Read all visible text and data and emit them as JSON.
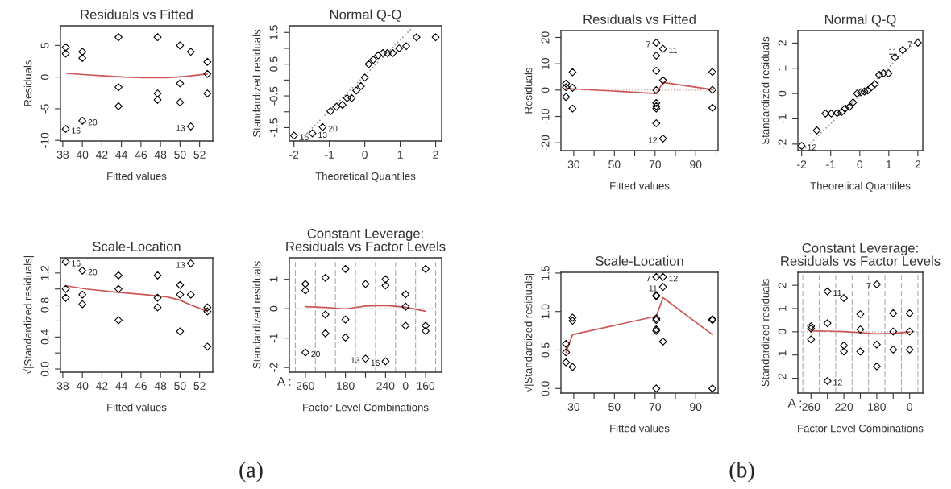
{
  "chart_data": [
    {
      "type": "scatter",
      "title": "Residuals vs Fitted",
      "xlabel": "Fitted values",
      "ylabel": "Residuals",
      "xlim": [
        37.76,
        53.35
      ],
      "ylim": [
        -10.1,
        8.1
      ],
      "xticks": [
        38,
        40,
        42,
        44,
        46,
        48,
        50,
        52
      ],
      "yticks": [
        -10,
        -5,
        0,
        5
      ],
      "ref_lines": [
        {
          "axis": "y",
          "value": 0,
          "color": "#c8a0a0",
          "line_style": "dotted"
        }
      ],
      "annotations": [
        {
          "text": "16",
          "x": 38.3,
          "y": -8.2
        },
        {
          "text": "20",
          "x": 40.0,
          "y": -6.9
        },
        {
          "text": "13",
          "x": 51.1,
          "y": -7.8
        }
      ],
      "series": [
        {
          "marker": "diamond",
          "color": "#000000",
          "x": [
            38.3,
            38.3,
            38.3,
            40.0,
            40.0,
            40.0,
            43.7,
            43.7,
            43.7,
            47.7,
            47.7,
            47.7,
            50.0,
            50.0,
            50.0,
            51.1,
            51.1,
            52.8,
            52.8,
            52.8
          ],
          "values": [
            4.7,
            3.7,
            -8.2,
            4.0,
            3.0,
            -6.9,
            6.3,
            -1.6,
            -4.6,
            6.3,
            -2.6,
            -3.6,
            5.0,
            -1.0,
            -4.0,
            4.0,
            -7.8,
            2.4,
            0.5,
            -2.6
          ]
        },
        {
          "type": "line",
          "color": "#cc5555",
          "x": [
            38.4,
            40.1,
            42.2,
            44.3,
            46.3,
            48.7,
            50.5,
            52.8
          ],
          "values": [
            0.6,
            0.4,
            0.2,
            0.0,
            -0.1,
            -0.1,
            0.1,
            0.5
          ]
        }
      ]
    },
    {
      "type": "scatter",
      "title": "Normal Q-Q",
      "xlabel": "Theoretical Quantiles",
      "ylabel": "Standardized residuals",
      "xlim": [
        -2.13,
        2.17
      ],
      "ylim": [
        -1.92,
        1.71
      ],
      "xticks": [
        -2,
        -1,
        0,
        1,
        2
      ],
      "yticks": [
        -1.5,
        {
          "value": -1.0,
          "label": null
        },
        -0.5,
        {
          "value": 0.0,
          "label": null
        },
        0.5,
        {
          "value": 1.0,
          "label": null
        },
        1.5
      ],
      "annotations": [
        {
          "text": "16",
          "x": -2.0,
          "y": -1.75
        },
        {
          "text": "13",
          "x": -1.48,
          "y": -1.68
        },
        {
          "text": "20",
          "x": -1.19,
          "y": -1.48
        }
      ],
      "series": [
        {
          "marker": "diamond",
          "color": "#000000",
          "x": [
            -2.0,
            -1.48,
            -1.19,
            -0.97,
            -0.8,
            -0.63,
            -0.5,
            -0.37,
            -0.24,
            -0.11,
            0.0,
            0.11,
            0.24,
            0.38,
            0.51,
            0.64,
            0.79,
            0.97,
            1.17,
            1.46,
            2.0
          ],
          "values": [
            -1.75,
            -1.68,
            -1.48,
            -0.98,
            -0.84,
            -0.78,
            -0.57,
            -0.57,
            -0.33,
            -0.19,
            0.08,
            0.5,
            0.64,
            0.78,
            0.85,
            0.85,
            0.85,
            1.0,
            1.07,
            1.35,
            1.35
          ]
        },
        {
          "type": "line",
          "color": "#999999",
          "line_style": "dotted",
          "x": [
            -1.85,
            1.4
          ],
          "values": [
            -1.92,
            1.71
          ]
        }
      ]
    },
    {
      "type": "scatter",
      "title": "Scale-Location",
      "xlabel": "Fitted values",
      "ylabel": "√|Standardized residuals|",
      "xlim": [
        37.76,
        53.35
      ],
      "ylim": [
        -0.04,
        1.39
      ],
      "xticks": [
        38,
        40,
        42,
        44,
        46,
        48,
        50,
        52
      ],
      "yticks": [
        {
          "value": 0,
          "label": "0.0"
        },
        {
          "value": 0.2,
          "label": null
        },
        0.4,
        {
          "value": 0.6,
          "label": null
        },
        0.8,
        {
          "value": 1,
          "label": null
        },
        1.2
      ],
      "annotations": [
        "(a)",
        {
          "text": "16",
          "x": 38.3,
          "y": 1.34
        },
        {
          "text": "20",
          "x": 40.0,
          "y": 1.23
        },
        {
          "text": "13",
          "x": 51.1,
          "y": 1.32
        }
      ],
      "series": [
        {
          "marker": "diamond",
          "color": "#000000",
          "x": [
            38.3,
            38.3,
            38.3,
            40.0,
            40.0,
            40.0,
            43.7,
            43.7,
            43.7,
            47.7,
            47.7,
            47.7,
            50.0,
            50.0,
            50.0,
            51.1,
            51.1,
            52.8,
            52.8,
            52.8
          ],
          "values": [
            1.34,
            1.0,
            0.89,
            1.23,
            0.93,
            0.81,
            1.17,
            1.0,
            0.61,
            1.17,
            0.89,
            0.77,
            1.05,
            0.93,
            0.47,
            1.32,
            0.93,
            0.77,
            0.72,
            0.28
          ]
        },
        {
          "type": "line",
          "color": "#cc5555",
          "x": [
            38.3,
            40.4,
            43.4,
            46.3,
            48.7,
            50.0,
            51.1,
            52.8
          ],
          "values": [
            1.04,
            1.0,
            0.96,
            0.93,
            0.9,
            0.86,
            0.8,
            0.72
          ]
        }
      ]
    },
    {
      "type": "scatter",
      "title": "Constant Leverage:\nResiduals vs Factor Levels",
      "xlabel": "Factor Level Combinations",
      "ylabel": "Standardized residuals",
      "ylim": [
        -2.16,
        1.73
      ],
      "yticks": [
        -2,
        -1,
        0,
        1
      ],
      "grid": "x",
      "categories": [
        "260",
        null,
        "180",
        null,
        "240",
        "0",
        "160"
      ],
      "annotations": [
        "A :",
        "16",
        "13",
        "20"
      ],
      "ref_lines": [
        {
          "axis": "y",
          "value": 0,
          "color": "#c8a0a0",
          "line_style": "dotted"
        }
      ],
      "series": [
        {
          "marker": "diamond",
          "color": "#000000",
          "values": [
            0.84,
            1.05,
            1.35,
            0.84,
            1.0,
            0.49,
            1.35
          ]
        },
        {
          "marker": "diamond",
          "color": "#000000",
          "values": [
            0.62,
            -0.2,
            -0.37,
            null,
            0.79,
            0.07,
            -0.58
          ]
        },
        {
          "marker": "diamond",
          "color": "#000000",
          "values": [
            -1.49,
            -0.84,
            -0.98,
            -1.7,
            -1.79,
            -0.58,
            -0.76
          ]
        },
        {
          "type": "line",
          "color": "#cc5555",
          "values": [
            0.07,
            0.04,
            -0.01,
            0.09,
            0.11,
            0.05,
            -0.09
          ]
        }
      ]
    },
    {
      "type": "scatter",
      "title": "Residuals vs Fitted",
      "xlabel": "Fitted values",
      "ylabel": "Residuals",
      "xlim": [
        23.7,
        101
      ],
      "ylim": [
        -23.0,
        22.6
      ],
      "xticks": [
        30,
        {
          "value": 40,
          "label": null
        },
        50,
        {
          "value": 60,
          "label": null
        },
        70,
        {
          "value": 80,
          "label": null
        },
        90,
        {
          "value": 100,
          "label": null
        }
      ],
      "yticks": [
        -20,
        -10,
        0,
        10,
        20
      ],
      "ref_lines": [
        {
          "axis": "y",
          "value": 0,
          "color": "#c8a0a0",
          "line_style": "dotted"
        }
      ],
      "annotations": [
        {
          "text": "7",
          "x": 70.6,
          "y": 18.0
        },
        {
          "text": "11",
          "x": 73.9,
          "y": 15.7
        },
        {
          "text": "12",
          "x": 73.9,
          "y": -18.4
        }
      ],
      "series": [
        {
          "marker": "diamond",
          "color": "#000000",
          "x": [
            26.2,
            26.2,
            26.2,
            29.4,
            29.4,
            29.4,
            70.6,
            70.6,
            70.6,
            70.6,
            70.6,
            70.6,
            70.6,
            70.6,
            73.9,
            73.9,
            73.9,
            98.2,
            98.2,
            98.2
          ],
          "values": [
            2.5,
            1.1,
            -2.6,
            6.8,
            0.9,
            -7.0,
            18.0,
            13.1,
            7.4,
            0.0,
            -4.9,
            -6.1,
            -7.0,
            -12.6,
            15.7,
            3.7,
            -18.4,
            6.9,
            0.1,
            -6.7
          ]
        },
        {
          "type": "line",
          "color": "#cc5555",
          "x": [
            26.2,
            29.4,
            70.6,
            73.9,
            98.2
          ],
          "values": [
            0.8,
            0.5,
            -1.3,
            2.9,
            0.2
          ]
        }
      ]
    },
    {
      "type": "scatter",
      "title": "Normal Q-Q",
      "xlabel": "Theoretical Quantiles",
      "ylabel": "Standardized residuals",
      "xlim": [
        -2.13,
        2.17
      ],
      "ylim": [
        -2.26,
        2.49
      ],
      "xticks": [
        -2,
        -1,
        0,
        1,
        2
      ],
      "yticks": [
        -2,
        -1,
        0,
        1,
        2
      ],
      "annotations": [
        {
          "text": "12",
          "x": -2.0,
          "y": -2.07
        },
        {
          "text": "11",
          "x": 1.48,
          "y": 1.72
        },
        {
          "text": "7",
          "x": 2.0,
          "y": 2.01
        }
      ],
      "series": [
        {
          "marker": "diamond",
          "color": "#000000",
          "x": [
            -2.0,
            -1.48,
            -1.18,
            -0.98,
            -0.78,
            -0.63,
            -0.5,
            -0.36,
            -0.23,
            -0.09,
            0.04,
            0.16,
            0.27,
            0.4,
            0.52,
            0.67,
            0.82,
            0.99,
            1.21,
            1.48,
            2.0
          ],
          "values": [
            -2.07,
            -1.46,
            -0.79,
            -0.79,
            -0.77,
            -0.74,
            -0.59,
            -0.53,
            -0.35,
            0.0,
            0.05,
            0.08,
            0.12,
            0.25,
            0.37,
            0.74,
            0.8,
            0.8,
            1.43,
            1.72,
            2.01
          ]
        },
        {
          "type": "line",
          "color": "#999999",
          "line_style": "dotted",
          "x": [
            -1.96,
            2.03
          ],
          "values": [
            -2.26,
            2.19
          ]
        }
      ]
    },
    {
      "type": "scatter",
      "title": "Scale-Location",
      "xlabel": "Fitted values",
      "ylabel": "√|Standardized residuals|",
      "xlim": [
        23.7,
        101
      ],
      "ylim": [
        -0.06,
        1.51
      ],
      "xticks": [
        30,
        {
          "value": 40,
          "label": null
        },
        50,
        {
          "value": 60,
          "label": null
        },
        70,
        {
          "value": 80,
          "label": null
        },
        90,
        {
          "value": 100,
          "label": null
        }
      ],
      "yticks": [
        {
          "value": 0,
          "label": "0.0"
        },
        0.5,
        {
          "value": 1,
          "label": "1.0"
        },
        1.5
      ],
      "annotations": [
        "(b)",
        {
          "text": "7",
          "x": 70.6,
          "y": 1.45
        },
        {
          "text": "12",
          "x": 73.9,
          "y": 1.45
        },
        {
          "text": "11",
          "x": 73.9,
          "y": 1.32
        }
      ],
      "series": [
        {
          "marker": "diamond",
          "color": "#000000",
          "x": [
            26.2,
            26.2,
            26.2,
            29.4,
            29.4,
            29.4,
            70.6,
            70.6,
            70.6,
            70.6,
            70.6,
            70.6,
            70.6,
            70.6,
            73.9,
            73.9,
            73.9,
            98.2,
            98.2,
            98.2
          ],
          "values": [
            0.58,
            0.47,
            0.34,
            0.92,
            0.88,
            0.28,
            1.45,
            1.21,
            1.2,
            0.91,
            0.89,
            0.77,
            0.75,
            0.0,
            1.45,
            1.32,
            0.61,
            0.9,
            0.89,
            0.0
          ]
        },
        {
          "type": "line",
          "color": "#cc5555",
          "x": [
            26.2,
            29.4,
            70.6,
            73.9,
            98.2
          ],
          "values": [
            0.47,
            0.7,
            0.94,
            1.18,
            0.7
          ]
        }
      ]
    },
    {
      "type": "scatter",
      "title": "Constant Leverage:\nResiduals vs Factor Levels",
      "xlabel": "Factor Level Combinations",
      "ylabel": "Standardized residuals",
      "ylim": [
        -2.64,
        2.56
      ],
      "yticks": [
        -2,
        -1,
        0,
        1,
        2
      ],
      "grid": "x",
      "categories": [
        "260",
        null,
        "220",
        null,
        "180",
        null,
        "0"
      ],
      "annotations": [
        "A :",
        "12",
        "7",
        "11"
      ],
      "ref_lines": [
        {
          "axis": "y",
          "value": 0,
          "color": "#c8a0a0",
          "line_style": "dotted"
        }
      ],
      "series": [
        {
          "marker": "diamond",
          "color": "#000000",
          "values": [
            0.24,
            1.74,
            1.45,
            0.76,
            2.04,
            0.8,
            0.8
          ]
        },
        {
          "marker": "diamond",
          "color": "#000000",
          "values": [
            0.14,
            0.37,
            -0.59,
            0.1,
            -0.55,
            0.01,
            0.01
          ]
        },
        {
          "marker": "diamond",
          "color": "#000000",
          "values": [
            -0.33,
            -2.12,
            -0.85,
            -0.85,
            -1.49,
            -0.77,
            -0.77
          ]
        },
        {
          "type": "line",
          "color": "#cc5555",
          "values": [
            0.04,
            0.03,
            0.01,
            -0.04,
            -0.09,
            -0.07,
            -0.01
          ]
        }
      ]
    }
  ]
}
